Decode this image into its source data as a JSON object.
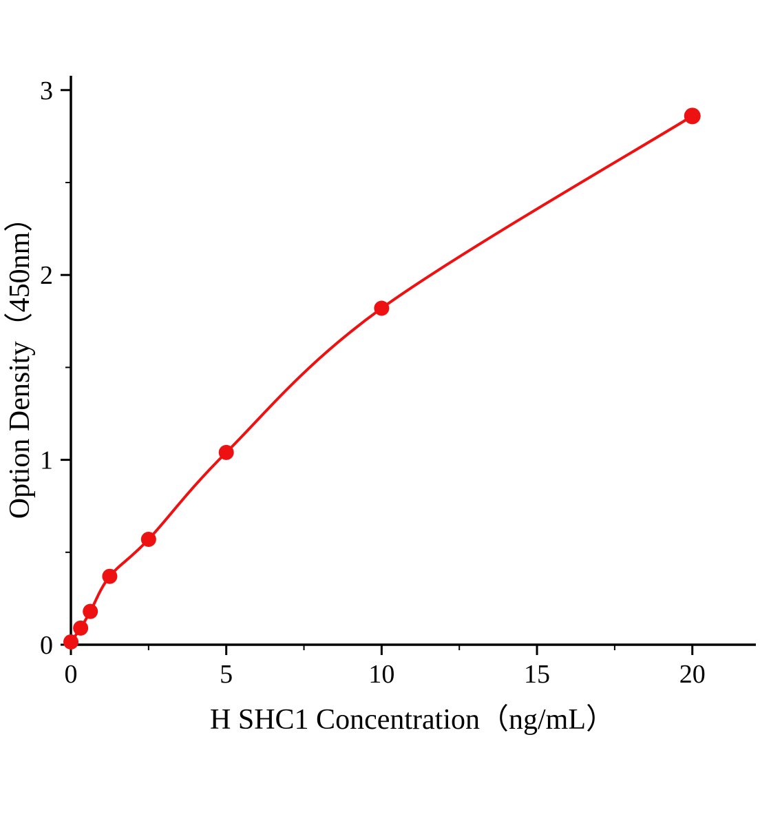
{
  "page": {
    "background": "#ffffff"
  },
  "chart_data": {
    "type": "scatter",
    "title": "",
    "xlabel": "H SHC1 Concentration（ng/mL）",
    "ylabel": "Option Density（450nm）",
    "x": [
      0,
      0.313,
      0.625,
      1.25,
      2.5,
      5,
      10,
      20
    ],
    "y": [
      0.015,
      0.09,
      0.18,
      0.37,
      0.57,
      1.04,
      1.82,
      2.86
    ],
    "x_ticks": [
      0,
      5,
      10,
      15,
      20
    ],
    "y_ticks": [
      0,
      1,
      2,
      3
    ],
    "x_minor_ticks": [
      2.5,
      7.5,
      12.5,
      17.5
    ],
    "y_minor_ticks": [
      0.5,
      1.5,
      2.5
    ],
    "xlim": [
      0,
      22
    ],
    "ylim": [
      0,
      3.07
    ],
    "grid": false,
    "legend": null,
    "line_color": "#ee1111",
    "marker_color": "#ee1111",
    "axis_color": "#000000",
    "marker_radius": 11,
    "line_width": 4
  }
}
